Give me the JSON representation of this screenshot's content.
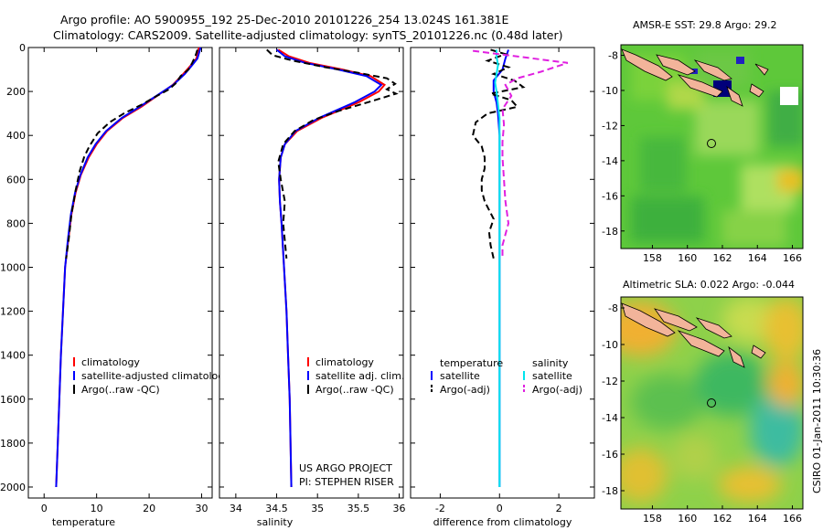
{
  "header": {
    "line1": "Argo profile: AO 5900955_192 25-Dec-2010 20101226_254 13.024S 161.381E",
    "line2": "Climatology: CARS2009. Satellite-adjusted climatology: synTS_20101226.nc (0.48d later)"
  },
  "footer_text": "CSIRO 01-Jan-2011 10:30:36",
  "project_text": [
    "US ARGO PROJECT",
    "PI: STEPHEN RISER"
  ],
  "colors": {
    "climatology": "#ff0000",
    "satellite": "#0000ff",
    "argo": "#000000",
    "sat_salinity": "#00e5ee",
    "argo_salinity_adj": "#e020e0"
  },
  "chart_data": [
    {
      "type": "line",
      "name": "temperature-profile",
      "xlabel": "temperature",
      "ylabel": "",
      "xlim": [
        -3,
        32
      ],
      "ylim": [
        0,
        2050
      ],
      "y_reversed": true,
      "xticks": [
        0,
        10,
        20,
        30
      ],
      "yticks": [
        0,
        200,
        400,
        600,
        800,
        1000,
        1200,
        1400,
        1600,
        1800,
        2000
      ],
      "legend": [
        "climatology",
        "satellite-adjusted climatology",
        "Argo(..raw -QC)"
      ],
      "series": [
        {
          "name": "climatology",
          "style": "solid",
          "color": "#ff0000",
          "points": [
            [
              29.5,
              0
            ],
            [
              29,
              50
            ],
            [
              28,
              80
            ],
            [
              26.5,
              120
            ],
            [
              24.5,
              170
            ],
            [
              21.5,
              220
            ],
            [
              18.5,
              270
            ],
            [
              15,
              320
            ],
            [
              12,
              380
            ],
            [
              10,
              440
            ],
            [
              8.5,
              500
            ],
            [
              7,
              580
            ],
            [
              6,
              660
            ],
            [
              5.2,
              760
            ],
            [
              4.6,
              880
            ],
            [
              4,
              1000
            ],
            [
              3.6,
              1200
            ],
            [
              3.2,
              1400
            ],
            [
              2.9,
              1600
            ],
            [
              2.6,
              1800
            ],
            [
              2.3,
              2000
            ]
          ]
        },
        {
          "name": "satellite-adjusted climatology",
          "style": "solid",
          "color": "#0000ff",
          "points": [
            [
              29.8,
              0
            ],
            [
              29.2,
              50
            ],
            [
              28.2,
              80
            ],
            [
              26.8,
              120
            ],
            [
              24.6,
              170
            ],
            [
              21.4,
              220
            ],
            [
              18.2,
              270
            ],
            [
              14.8,
              320
            ],
            [
              11.8,
              380
            ],
            [
              9.8,
              440
            ],
            [
              8.3,
              500
            ],
            [
              6.9,
              580
            ],
            [
              5.9,
              660
            ],
            [
              5.1,
              760
            ],
            [
              4.5,
              880
            ],
            [
              4,
              1000
            ],
            [
              3.6,
              1200
            ],
            [
              3.2,
              1400
            ],
            [
              2.9,
              1600
            ],
            [
              2.6,
              1800
            ],
            [
              2.3,
              2000
            ]
          ]
        },
        {
          "name": "Argo(..raw -QC)",
          "style": "dash",
          "color": "#000000",
          "points": [
            [
              29.2,
              10
            ],
            [
              28.8,
              40
            ],
            [
              28.2,
              70
            ],
            [
              27.5,
              100
            ],
            [
              26,
              130
            ],
            [
              25.2,
              160
            ],
            [
              23.8,
              190
            ],
            [
              21.5,
              220
            ],
            [
              18.6,
              260
            ],
            [
              15.2,
              300
            ],
            [
              12.5,
              340
            ],
            [
              10.2,
              390
            ],
            [
              8.6,
              450
            ],
            [
              7.6,
              500
            ],
            [
              6.8,
              560
            ],
            [
              6,
              650
            ],
            [
              5.2,
              760
            ],
            [
              4.7,
              870
            ],
            [
              4.2,
              960
            ]
          ]
        }
      ]
    },
    {
      "type": "line",
      "name": "salinity-profile",
      "xlabel": "salinity",
      "ylabel": "",
      "xlim": [
        33.8,
        36.05
      ],
      "ylim": [
        0,
        2050
      ],
      "y_reversed": true,
      "xticks": [
        34,
        34.5,
        35,
        35.5,
        36
      ],
      "yticks": [],
      "legend": [
        "climatology",
        "satellite adj. clim.",
        "Argo(..raw -QC)"
      ],
      "series": [
        {
          "name": "climatology",
          "style": "solid",
          "color": "#ff0000",
          "points": [
            [
              34.52,
              10
            ],
            [
              34.65,
              40
            ],
            [
              34.9,
              70
            ],
            [
              35.3,
              100
            ],
            [
              35.65,
              130
            ],
            [
              35.82,
              170
            ],
            [
              35.75,
              200
            ],
            [
              35.5,
              250
            ],
            [
              35.05,
              320
            ],
            [
              34.75,
              380
            ],
            [
              34.6,
              440
            ],
            [
              34.55,
              500
            ],
            [
              34.53,
              600
            ],
            [
              34.54,
              700
            ],
            [
              34.56,
              800
            ],
            [
              34.59,
              1000
            ],
            [
              34.62,
              1200
            ],
            [
              34.64,
              1400
            ],
            [
              34.66,
              1600
            ],
            [
              34.67,
              1800
            ],
            [
              34.68,
              2000
            ]
          ]
        },
        {
          "name": "satellite adj. clim.",
          "style": "solid",
          "color": "#0000ff",
          "points": [
            [
              34.5,
              10
            ],
            [
              34.6,
              40
            ],
            [
              34.85,
              70
            ],
            [
              35.25,
              100
            ],
            [
              35.6,
              130
            ],
            [
              35.78,
              170
            ],
            [
              35.7,
              200
            ],
            [
              35.45,
              250
            ],
            [
              35.02,
              320
            ],
            [
              34.73,
              380
            ],
            [
              34.6,
              440
            ],
            [
              34.55,
              500
            ],
            [
              34.53,
              600
            ],
            [
              34.54,
              700
            ],
            [
              34.56,
              800
            ],
            [
              34.59,
              1000
            ],
            [
              34.62,
              1200
            ],
            [
              34.64,
              1400
            ],
            [
              34.66,
              1600
            ],
            [
              34.67,
              1800
            ],
            [
              34.68,
              2000
            ]
          ]
        },
        {
          "name": "Argo(..raw -QC)",
          "style": "dash",
          "color": "#000000",
          "points": [
            [
              34.38,
              10
            ],
            [
              34.45,
              35
            ],
            [
              34.7,
              60
            ],
            [
              35.1,
              90
            ],
            [
              35.5,
              115
            ],
            [
              35.85,
              140
            ],
            [
              35.95,
              165
            ],
            [
              35.85,
              190
            ],
            [
              35.96,
              210
            ],
            [
              35.7,
              240
            ],
            [
              35.25,
              290
            ],
            [
              34.95,
              330
            ],
            [
              34.72,
              380
            ],
            [
              34.58,
              440
            ],
            [
              34.52,
              520
            ],
            [
              34.55,
              600
            ],
            [
              34.6,
              700
            ],
            [
              34.58,
              800
            ],
            [
              34.6,
              880
            ],
            [
              34.62,
              960
            ]
          ]
        }
      ]
    },
    {
      "type": "line",
      "name": "difference-profile",
      "xlabel": "difference from climatology",
      "ylabel": "",
      "xlim": [
        -3,
        3.2
      ],
      "ylim": [
        0,
        2050
      ],
      "y_reversed": true,
      "xticks": [
        -2,
        0,
        2
      ],
      "yticks": [],
      "legend_headers": [
        "temperature",
        "salinity"
      ],
      "legend": [
        "satellite",
        "Argo(-adj)",
        "satellite",
        "Argo(-adj)"
      ],
      "series": [
        {
          "name": "satellite (temperature)",
          "style": "solid",
          "color": "#0000ff",
          "points": [
            [
              0.3,
              10
            ],
            [
              0.2,
              50
            ],
            [
              0.1,
              100
            ],
            [
              -0.2,
              150
            ],
            [
              -0.2,
              200
            ],
            [
              -0.1,
              250
            ],
            [
              -0.05,
              300
            ],
            [
              0,
              400
            ],
            [
              0,
              500
            ],
            [
              0,
              700
            ],
            [
              0,
              1000
            ],
            [
              0,
              1500
            ],
            [
              0,
              2000
            ]
          ]
        },
        {
          "name": "Argo(-adj) (temperature)",
          "style": "dash",
          "color": "#000000",
          "points": [
            [
              -0.3,
              10
            ],
            [
              0.2,
              30
            ],
            [
              -0.4,
              60
            ],
            [
              0.3,
              90
            ],
            [
              -0.2,
              120
            ],
            [
              0.5,
              150
            ],
            [
              0.8,
              180
            ],
            [
              -0.3,
              210
            ],
            [
              0.4,
              240
            ],
            [
              0.6,
              270
            ],
            [
              -0.4,
              300
            ],
            [
              -0.8,
              340
            ],
            [
              -0.9,
              400
            ],
            [
              -0.6,
              450
            ],
            [
              -0.5,
              500
            ],
            [
              -0.5,
              550
            ],
            [
              -0.6,
              600
            ],
            [
              -0.6,
              650
            ],
            [
              -0.5,
              700
            ],
            [
              -0.2,
              780
            ],
            [
              -0.35,
              840
            ],
            [
              -0.3,
              900
            ],
            [
              -0.2,
              960
            ]
          ]
        },
        {
          "name": "satellite (salinity)",
          "style": "solid",
          "color": "#00e5ee",
          "points": [
            [
              -0.1,
              10
            ],
            [
              -0.1,
              40
            ],
            [
              -0.05,
              80
            ],
            [
              -0.1,
              120
            ],
            [
              -0.15,
              160
            ],
            [
              -0.1,
              200
            ],
            [
              -0.05,
              260
            ],
            [
              0,
              320
            ],
            [
              0,
              400
            ],
            [
              0,
              600
            ],
            [
              0,
              900
            ],
            [
              0,
              1200
            ],
            [
              0,
              1500
            ],
            [
              0,
              2000
            ]
          ]
        },
        {
          "name": "Argo(-adj) (salinity)",
          "style": "dash",
          "color": "#e020e0",
          "points": [
            [
              -0.9,
              15
            ],
            [
              2.3,
              70
            ],
            [
              1.4,
              110
            ],
            [
              0.6,
              140
            ],
            [
              0.2,
              170
            ],
            [
              0.4,
              220
            ],
            [
              0.1,
              280
            ],
            [
              0.15,
              350
            ],
            [
              0.1,
              430
            ],
            [
              0.1,
              500
            ],
            [
              0.15,
              600
            ],
            [
              0.2,
              700
            ],
            [
              0.3,
              800
            ],
            [
              0.1,
              900
            ],
            [
              0.1,
              960
            ]
          ]
        }
      ]
    }
  ],
  "maps": [
    {
      "name": "sst-map",
      "title": "AMSR-E SST: 29.8 Argo: 29.2",
      "xticks": [
        158,
        160,
        162,
        164,
        166
      ],
      "yticks": [
        -8,
        -10,
        -12,
        -14,
        -16,
        -18
      ],
      "xlim": [
        156.2,
        166.6
      ],
      "ylim": [
        -19,
        -7.4
      ],
      "profile_location": [
        161.4,
        -13.0
      ]
    },
    {
      "name": "sla-map",
      "title": "Altimetric SLA: 0.022 Argo: -0.044",
      "xticks": [
        158,
        160,
        162,
        164,
        166
      ],
      "yticks": [
        -8,
        -10,
        -12,
        -14,
        -16,
        -18
      ],
      "xlim": [
        156.2,
        166.6
      ],
      "ylim": [
        -19,
        -7.4
      ],
      "profile_location": [
        161.4,
        -13.0
      ]
    }
  ]
}
